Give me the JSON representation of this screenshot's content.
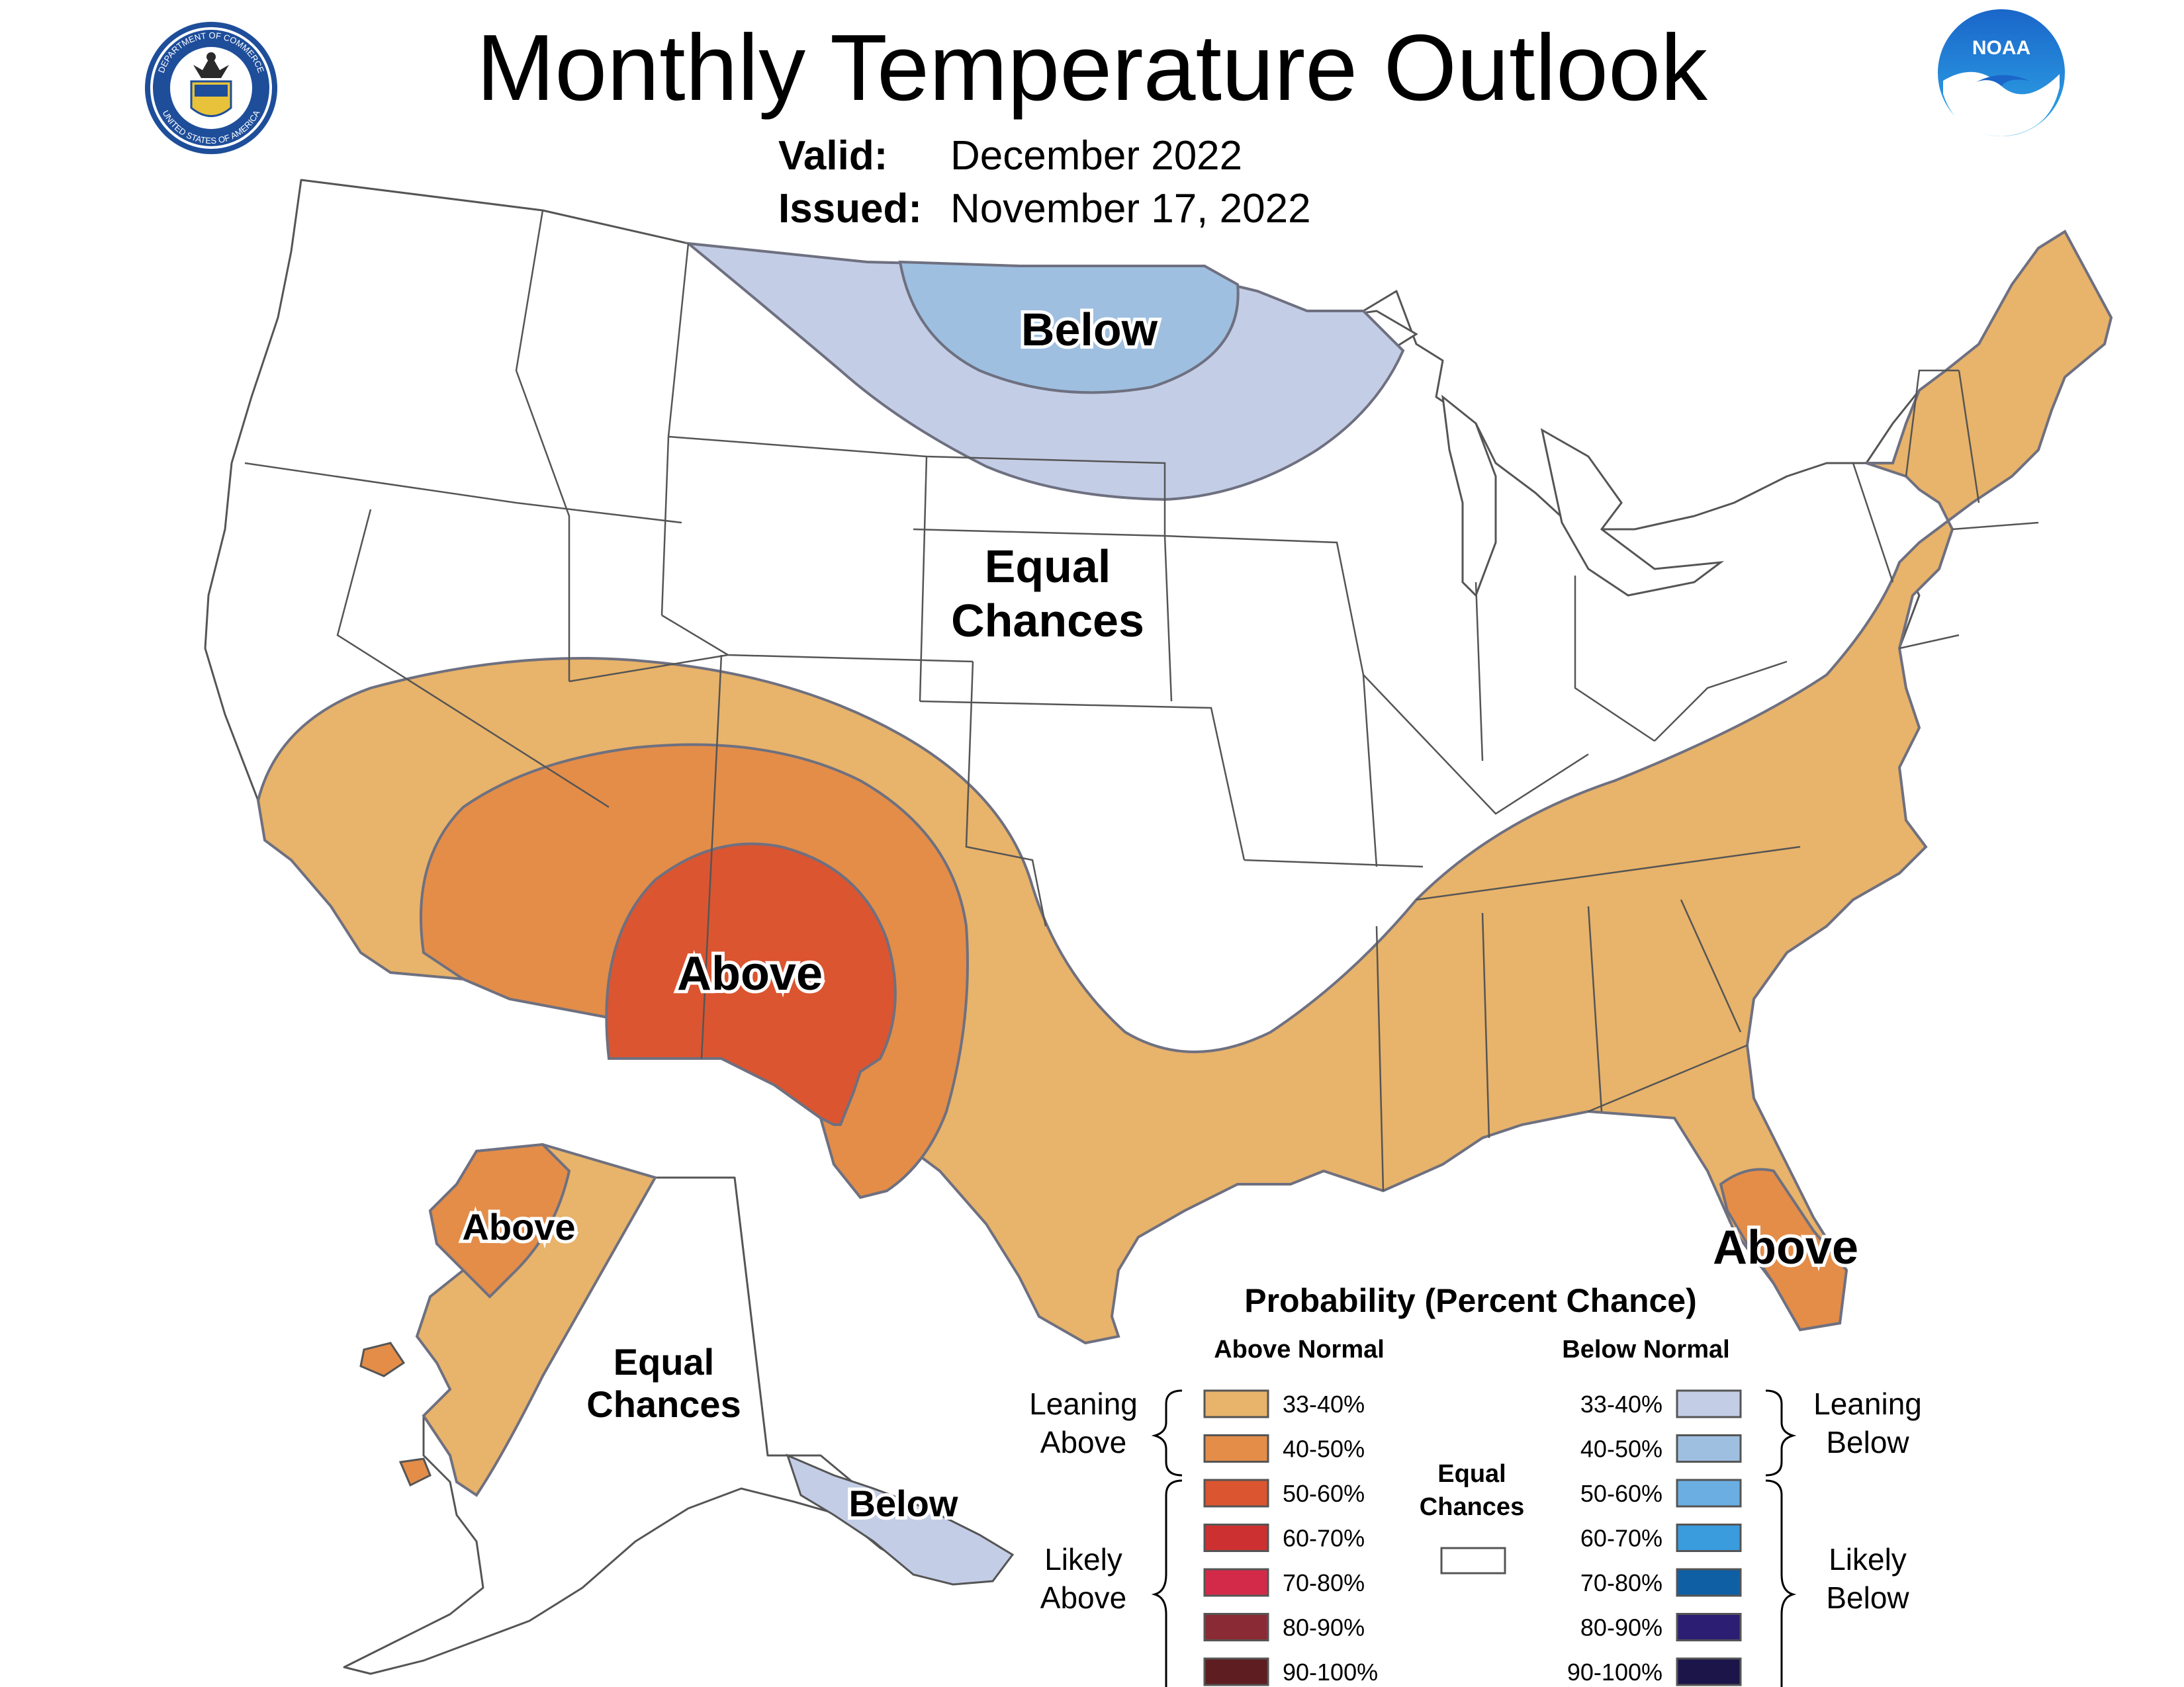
{
  "header": {
    "title": "Monthly Temperature Outlook",
    "valid_label": "Valid:",
    "valid_value": "December 2022",
    "issued_label": "Issued:",
    "issued_value": "November 17, 2022"
  },
  "logos": {
    "commerce_seal": {
      "ring_top_text": "DEPARTMENT OF COMMERCE",
      "ring_bottom_text": "UNITED STATES OF AMERICA",
      "icon": "doc-seal-icon"
    },
    "noaa": {
      "text": "NOAA",
      "icon": "noaa-logo-icon"
    }
  },
  "map_labels": {
    "conus_below": "Below",
    "conus_equal_1": "Equal",
    "conus_equal_2": "Chances",
    "conus_above": "Above",
    "florida_above": "Above",
    "alaska_above": "Above",
    "alaska_equal_1": "Equal",
    "alaska_equal_2": "Chances",
    "alaska_below": "Below"
  },
  "colors": {
    "above_33_40": "#E8B36A",
    "above_40_50": "#E38D49",
    "above_50_60": "#DB5530",
    "above_60_70": "#CC3030",
    "above_70_80": "#D42A4A",
    "above_80_90": "#8A2A35",
    "above_90_100": "#5E1D20",
    "below_33_40": "#C3CDE6",
    "below_40_50": "#9EBFE0",
    "below_50_60": "#6AAEE2",
    "below_60_70": "#3A9CDD",
    "below_70_80": "#0F5FA5",
    "below_80_90": "#2C1E72",
    "below_90_100": "#1B154A",
    "equal": "#FFFFFF",
    "outline": "#6E7080",
    "boundary": "#555555"
  },
  "legend": {
    "title": "Probability (Percent Chance)",
    "above_header": "Above Normal",
    "below_header": "Below Normal",
    "above_rows": [
      "33-40%",
      "40-50%",
      "50-60%",
      "60-70%",
      "70-80%",
      "80-90%",
      "90-100%"
    ],
    "below_rows": [
      "33-40%",
      "40-50%",
      "50-60%",
      "60-70%",
      "70-80%",
      "80-90%",
      "90-100%"
    ],
    "leaning_above_1": "Leaning",
    "leaning_above_2": "Above",
    "likely_above_1": "Likely",
    "likely_above_2": "Above",
    "leaning_below_1": "Leaning",
    "leaning_below_2": "Below",
    "likely_below_1": "Likely",
    "likely_below_2": "Below",
    "equal_1": "Equal",
    "equal_2": "Chances"
  }
}
